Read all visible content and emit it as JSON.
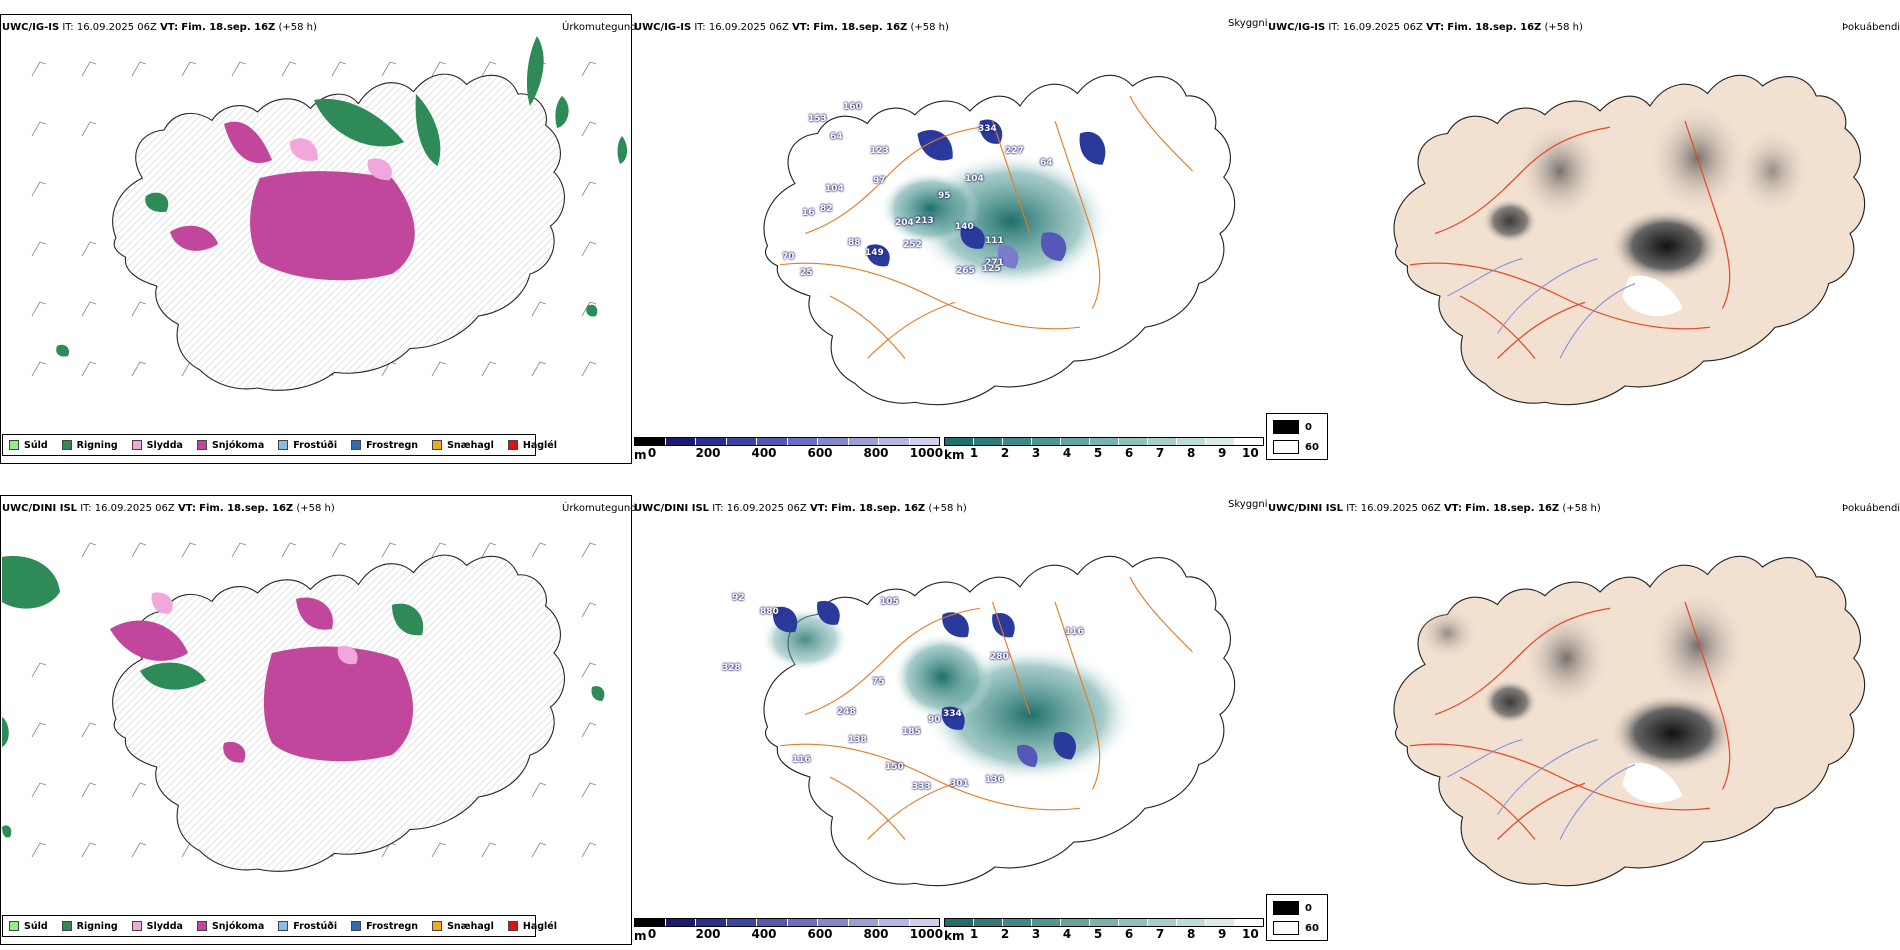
{
  "rows": [
    {
      "model": "UWC/IG-IS",
      "it_label": "IT:",
      "it": "16.09.2025 06Z",
      "vt_label": "VT:",
      "vt": "Fim. 18.sep. 16Z",
      "lead": "(+58 h)"
    },
    {
      "model": "UWC/DINI ISL",
      "it_label": "IT:",
      "it": "16.09.2025 06Z",
      "vt_label": "VT:",
      "vt": "Fim. 18.sep. 16Z",
      "lead": "(+58 h)"
    }
  ],
  "panel_titles": {
    "precip": "Úrkomutegund",
    "cloud": "Skyggni",
    "fog": "Þokuábendi"
  },
  "precip_legend": [
    {
      "label": "Súld",
      "color": "#90ee90"
    },
    {
      "label": "Rigning",
      "color": "#2e8b57"
    },
    {
      "label": "Slydda",
      "color": "#f2a7dc"
    },
    {
      "label": "Snjókoma",
      "color": "#c0479c"
    },
    {
      "label": "Frostúði",
      "color": "#87bde8"
    },
    {
      "label": "Frostregn",
      "color": "#2f6db3"
    },
    {
      "label": "Snæhagl",
      "color": "#f5a623"
    },
    {
      "label": "Haglél",
      "color": "#e01010"
    }
  ],
  "height_colorbar": {
    "unit": "m",
    "ticks": [
      "0",
      "200",
      "400",
      "600",
      "800",
      "1000"
    ],
    "colors": [
      "#000000",
      "#1a1a6e",
      "#27308f",
      "#3a44a3",
      "#5258b2",
      "#6a6fc0",
      "#8587cc",
      "#9c9ed8",
      "#b5b6e2",
      "#cfd0ee"
    ]
  },
  "visibility_colorbar": {
    "unit": "km",
    "ticks": [
      "1",
      "2",
      "3",
      "4",
      "5",
      "6",
      "7",
      "8",
      "9",
      "10"
    ],
    "colors": [
      "#1f6f6a",
      "#2c7d78",
      "#3b8a85",
      "#4d9792",
      "#62a4a0",
      "#79b2ae",
      "#90c0bc",
      "#a8cecb",
      "#c0dcd9",
      "#d9eae8",
      "#ffffff"
    ]
  },
  "fog_legend": [
    {
      "value": "0",
      "color": "#000000"
    },
    {
      "value": "60",
      "color": "#ffffff"
    }
  ],
  "cloud_labels_top": [
    "153",
    "160",
    "64",
    "123",
    "97",
    "104",
    "82",
    "16",
    "88",
    "70",
    "25",
    "149",
    "252",
    "213",
    "204",
    "95",
    "104",
    "140",
    "271",
    "111",
    "265",
    "125",
    "334",
    "227",
    "64"
  ],
  "cloud_labels_bottom": [
    "92",
    "880",
    "328",
    "105",
    "75",
    "248",
    "138",
    "150",
    "333",
    "301",
    "90",
    "185",
    "334",
    "280",
    "136",
    "116",
    "116"
  ],
  "colors": {
    "snow": "#c0479c",
    "rain": "#2e8b57",
    "sleet": "#f2a7dc",
    "low_cloud": "#2a3a9c",
    "vis": "#2f8a84",
    "land_tan": "#f2e0d1",
    "roads": "#e07c2a",
    "fog_roads": "#e34b2a",
    "rivers": "#7a8fe0"
  }
}
